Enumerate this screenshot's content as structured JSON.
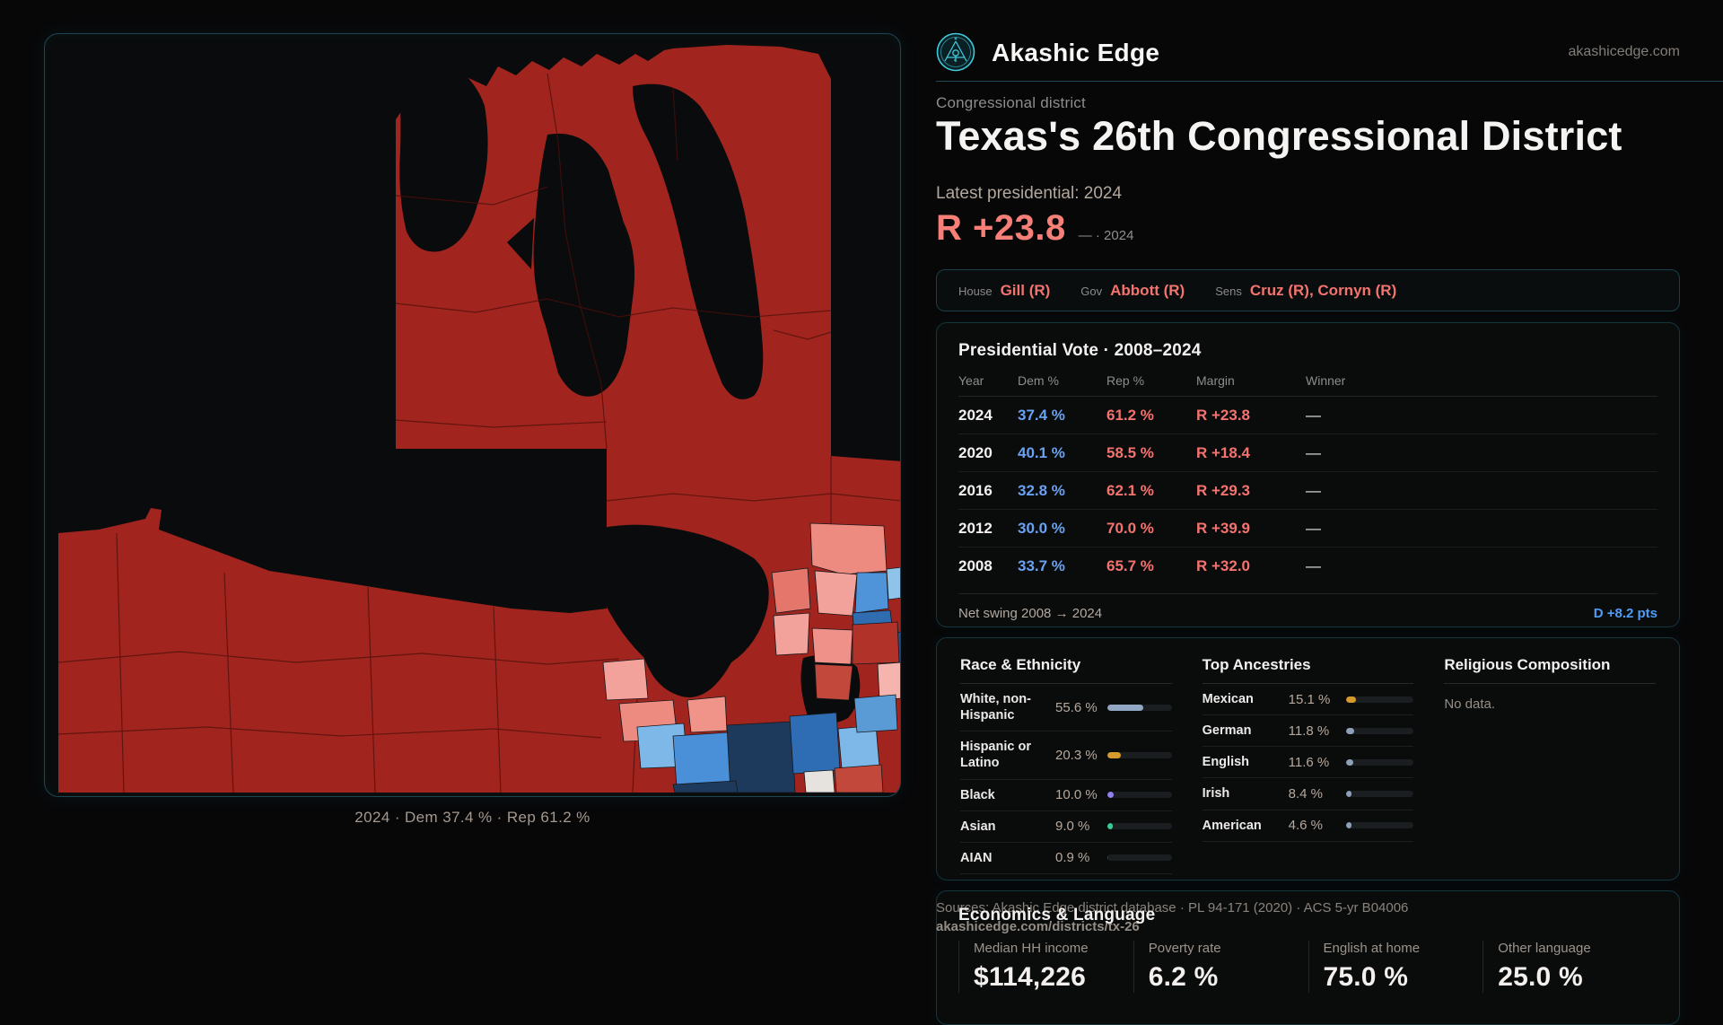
{
  "header": {
    "brand": "Akashic Edge",
    "domain": "akashicedge.com"
  },
  "hero": {
    "kicker": "Congressional district",
    "title": "Texas's 26th Congressional District",
    "latest_label": "Latest presidential: 2024",
    "margin_value": "R +23.8",
    "margin_note": "— · 2024"
  },
  "officials": {
    "items": [
      {
        "label": "House",
        "value": "Gill (R)"
      },
      {
        "label": "Gov",
        "value": "Abbott (R)"
      },
      {
        "label": "Sens",
        "value": "Cruz (R), Cornyn (R)"
      }
    ]
  },
  "presidential_table": {
    "title": "Presidential Vote · 2008–2024",
    "columns": [
      "Year",
      "Dem %",
      "Rep %",
      "Margin",
      "Winner"
    ],
    "rows": [
      [
        "2024",
        "37.4 %",
        "61.2 %",
        "R +23.8",
        "—"
      ],
      [
        "2020",
        "40.1 %",
        "58.5 %",
        "R +18.4",
        "—"
      ],
      [
        "2016",
        "32.8 %",
        "62.1 %",
        "R +29.3",
        "—"
      ],
      [
        "2012",
        "30.0 %",
        "70.0 %",
        "R +39.9",
        "—"
      ],
      [
        "2008",
        "33.7 %",
        "65.7 %",
        "R +32.0",
        "—"
      ]
    ],
    "net_swing_label": "Net swing 2008 → 2024",
    "net_swing_value": "D +8.2 pts"
  },
  "race_ethnicity": {
    "title": "Race & Ethnicity",
    "rows": [
      {
        "label": "White, non-Hispanic",
        "value": "55.6 %",
        "pct": 55.6,
        "color": "#92a7c4"
      },
      {
        "label": "Hispanic or Latino",
        "value": "20.3 %",
        "pct": 20.3,
        "color": "#d69a2d"
      },
      {
        "label": "Black",
        "value": "10.0 %",
        "pct": 10.0,
        "color": "#8f7ff0"
      },
      {
        "label": "Asian",
        "value": "9.0 %",
        "pct": 9.0,
        "color": "#2fcf96"
      },
      {
        "label": "AIAN",
        "value": "0.9 %",
        "pct": 0.9,
        "color": "#3a3f42"
      }
    ]
  },
  "ancestries": {
    "title": "Top Ancestries",
    "rows": [
      {
        "label": "Mexican",
        "value": "15.1 %",
        "pct": 15.1,
        "color": "#d69a2d"
      },
      {
        "label": "German",
        "value": "11.8 %",
        "pct": 11.8,
        "color": "#8da0b8"
      },
      {
        "label": "English",
        "value": "11.6 %",
        "pct": 11.6,
        "color": "#8da0b8"
      },
      {
        "label": "Irish",
        "value": "8.4 %",
        "pct": 8.4,
        "color": "#8da0b8"
      },
      {
        "label": "American",
        "value": "4.6 %",
        "pct": 4.6,
        "color": "#8da0b8"
      }
    ]
  },
  "religion": {
    "title": "Religious Composition",
    "empty": "No data."
  },
  "economics": {
    "title": "Economics & Language",
    "stats": [
      {
        "label": "Median HH income",
        "value": "$114,226"
      },
      {
        "label": "Poverty rate",
        "value": "6.2 %"
      },
      {
        "label": "English at home",
        "value": "75.0 %"
      },
      {
        "label": "Other language",
        "value": "25.0 %"
      }
    ]
  },
  "source": {
    "line1": "Sources: Akashic Edge district database · PL 94-171 (2020) · ACS 5-yr B04006",
    "line2": "akashicedge.com/districts/tx-26"
  },
  "map": {
    "caption": "2024 · Dem 37.4 % · Rep 61.2 %"
  },
  "colors": {
    "accent_teal": "#3fc8da",
    "rep_red": "#f4736e",
    "dem_blue": "#6aa2f2",
    "swing_blue": "#4f9df6",
    "map_red": "#a1251e",
    "card_border_teal": "#14363d"
  }
}
